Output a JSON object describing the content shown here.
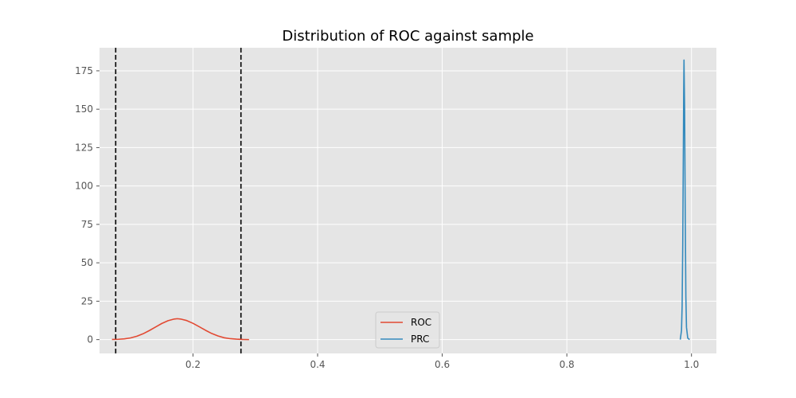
{
  "chart_data": {
    "type": "line",
    "title": "Distribution of ROC against sample",
    "xlabel": "",
    "ylabel": "",
    "xlim": [
      0.05,
      1.04
    ],
    "ylim": [
      -9,
      190
    ],
    "xticks": [
      {
        "value": 0.2,
        "label": "0.2"
      },
      {
        "value": 0.4,
        "label": "0.4"
      },
      {
        "value": 0.6,
        "label": "0.6"
      },
      {
        "value": 0.8,
        "label": "0.8"
      },
      {
        "value": 1.0,
        "label": "1.0"
      }
    ],
    "yticks": [
      {
        "value": 0,
        "label": "0"
      },
      {
        "value": 25,
        "label": "25"
      },
      {
        "value": 50,
        "label": "50"
      },
      {
        "value": 75,
        "label": "75"
      },
      {
        "value": 100,
        "label": "100"
      },
      {
        "value": 125,
        "label": "125"
      },
      {
        "value": 150,
        "label": "150"
      },
      {
        "value": 175,
        "label": "175"
      }
    ],
    "grid": true,
    "legend_position": "lower-center",
    "series": [
      {
        "name": "ROC",
        "color": "#E24A33",
        "x": [
          0.07,
          0.08,
          0.09,
          0.1,
          0.11,
          0.12,
          0.13,
          0.14,
          0.15,
          0.16,
          0.17,
          0.175,
          0.18,
          0.19,
          0.2,
          0.21,
          0.22,
          0.23,
          0.24,
          0.25,
          0.26,
          0.27,
          0.28,
          0.29
        ],
        "y": [
          0.1,
          0.2,
          0.5,
          1.1,
          2.2,
          3.8,
          5.9,
          8.2,
          10.5,
          12.3,
          13.4,
          13.6,
          13.4,
          12.4,
          10.6,
          8.4,
          6.1,
          4.0,
          2.4,
          1.2,
          0.6,
          0.3,
          0.1,
          0.0
        ]
      },
      {
        "name": "PRC",
        "color": "#348ABD",
        "x": [
          0.982,
          0.984,
          0.985,
          0.986,
          0.987,
          0.9875,
          0.988,
          0.989,
          0.99,
          0.991,
          0.992,
          0.994,
          0.997
        ],
        "y": [
          0.0,
          6,
          22,
          62,
          125,
          160,
          182,
          150,
          80,
          28,
          8,
          1,
          0.0
        ]
      }
    ],
    "vlines": [
      {
        "x": 0.076,
        "color": "#000000",
        "style": "dashed"
      },
      {
        "x": 0.277,
        "color": "#000000",
        "style": "dashed"
      }
    ]
  }
}
